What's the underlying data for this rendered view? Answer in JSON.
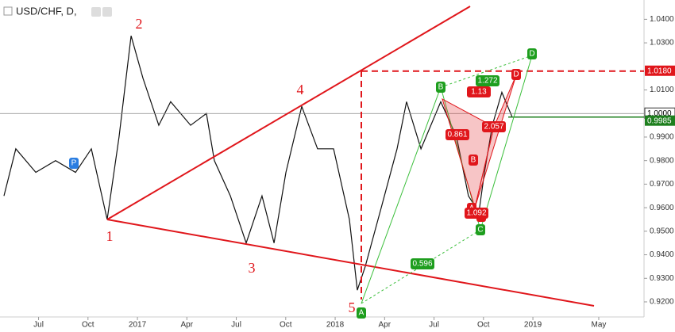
{
  "chart_data": {
    "type": "line",
    "title": "USD/CHF, D,",
    "x": [
      2016.325,
      2016.385,
      2016.486,
      2016.586,
      2016.687,
      2016.767,
      2016.847,
      2016.907,
      2016.968,
      2017.028,
      2017.108,
      2017.168,
      2017.269,
      2017.349,
      2017.389,
      2017.47,
      2017.55,
      2017.63,
      2017.691,
      2017.751,
      2017.831,
      2017.911,
      2017.992,
      2018.072,
      2018.112,
      2018.152,
      2018.233,
      2018.313,
      2018.361,
      2018.434,
      2018.534,
      2018.614,
      2018.674,
      2018.727,
      2018.755,
      2018.795,
      2018.843,
      2018.895
    ],
    "series": [
      {
        "name": "USD/CHF",
        "color": "#111111",
        "values": [
          0.965,
          0.985,
          0.975,
          0.98,
          0.975,
          0.985,
          0.955,
          0.99,
          1.033,
          1.015,
          0.995,
          1.005,
          0.995,
          1.0,
          0.98,
          0.965,
          0.945,
          0.965,
          0.945,
          0.975,
          1.003,
          0.985,
          0.985,
          0.955,
          0.925,
          0.935,
          0.96,
          0.985,
          1.005,
          0.985,
          1.005,
          0.99,
          0.965,
          0.958,
          0.975,
          0.995,
          1.009,
          0.9985
        ]
      }
    ],
    "xlim": [
      2016.305,
      2019.558
    ],
    "xticks": [
      {
        "value": 2016.5,
        "label": "Jul"
      },
      {
        "value": 2016.75,
        "label": "Oct"
      },
      2017,
      {
        "value": 2017.25,
        "label": "Apr"
      },
      {
        "value": 2017.5,
        "label": "Jul"
      },
      {
        "value": 2017.75,
        "label": "Oct"
      },
      2018,
      {
        "value": 2018.25,
        "label": "Apr"
      },
      {
        "value": 2018.5,
        "label": "Jul"
      },
      {
        "value": 2018.75,
        "label": "Oct"
      },
      2019,
      {
        "value": 2019.333,
        "label": "May"
      }
    ],
    "ylim": [
      0.9136,
      1.0482
    ],
    "yticks": [
      {
        "value": 1.04,
        "label": "1.0400"
      },
      {
        "value": 1.03,
        "label": "1.0300"
      },
      {
        "value": 1.01,
        "label": "1.0100"
      },
      {
        "value": 0.99,
        "label": "0.9900"
      },
      {
        "value": 0.98,
        "label": "0.9800"
      },
      {
        "value": 0.97,
        "label": "0.9700"
      },
      {
        "value": 0.96,
        "label": "0.9600"
      },
      {
        "value": 0.95,
        "label": "0.9500"
      },
      {
        "value": 0.94,
        "label": "0.9400"
      },
      {
        "value": 0.93,
        "label": "0.9300"
      },
      {
        "value": 0.92,
        "label": "0.9200"
      }
    ],
    "price_labels": [
      {
        "value": 1.018,
        "label": "1.0180",
        "color": "#e0161b"
      },
      {
        "value": 1.0,
        "label": "1.0000",
        "color": "#ffffff"
      },
      {
        "value": 0.9985,
        "label": "0.9985",
        "color": "#1e7f1e"
      }
    ],
    "annotations": [
      "1",
      "2",
      "3",
      "4",
      "5",
      "A",
      "B",
      "C",
      "D",
      "0.596",
      "1.272",
      "1.13",
      "A",
      "B",
      "C",
      "D",
      "0.861",
      "1.092",
      "2.057",
      "P"
    ]
  }
}
